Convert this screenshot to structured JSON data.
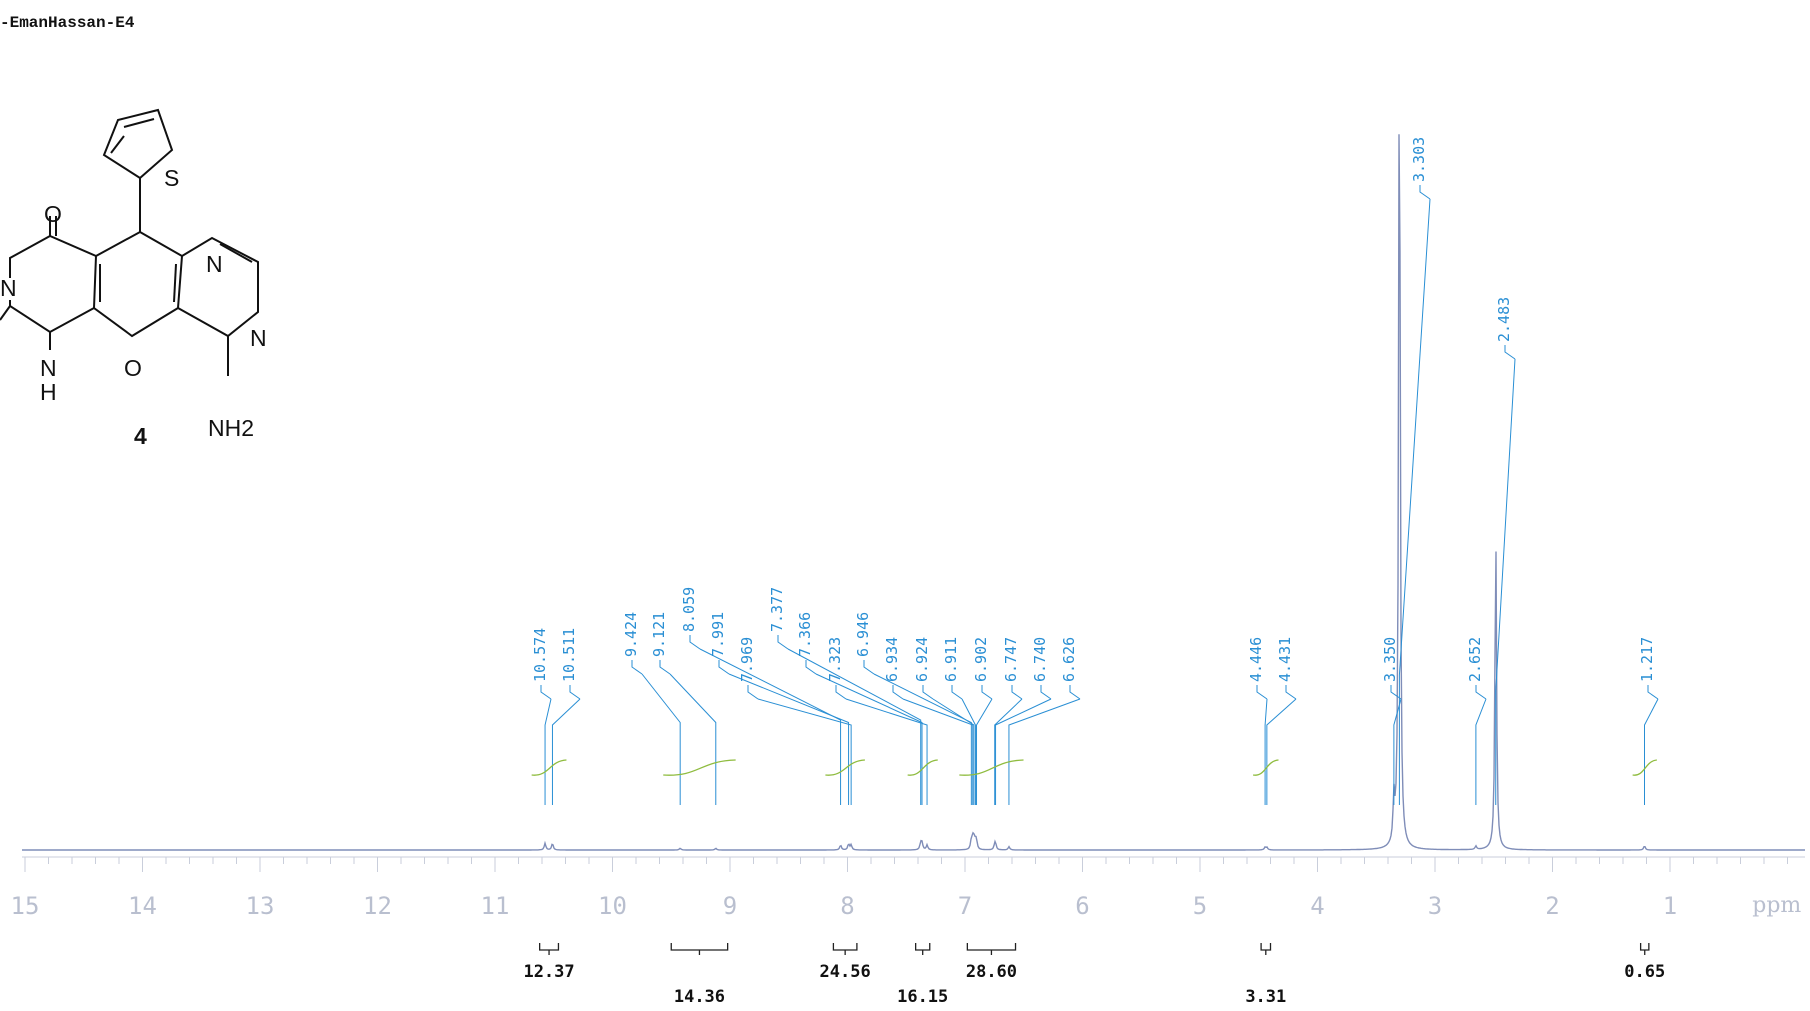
{
  "sample_label": "-EmanHassan-E4",
  "structure": {
    "compound_number": "4",
    "atoms": [
      "O",
      "N",
      "N",
      "N",
      "S",
      "O",
      "N",
      "H",
      "NH2"
    ]
  },
  "colors": {
    "axis_text": "#b9bfcf",
    "peak_label": "#2a8fd4",
    "spectrum": "#7f8db8",
    "integral_curve": "#8fbc3f",
    "integral_text": "#111111"
  },
  "chart_data": {
    "type": "line",
    "title": "",
    "xlabel": "ppm",
    "ylabel": "",
    "x_axis": "reversed",
    "xlim": [
      15.5,
      0.0
    ],
    "x_ticks": [
      15,
      14,
      13,
      12,
      11,
      10,
      9,
      8,
      7,
      6,
      5,
      4,
      3,
      2,
      1
    ],
    "x_unit_label": "ppm",
    "grid": false,
    "peaks": [
      {
        "label": "10.574",
        "ppm": 10.574,
        "height": 0.008
      },
      {
        "label": "10.511",
        "ppm": 10.511,
        "height": 0.008
      },
      {
        "label": "9.424",
        "ppm": 9.424,
        "height": 0.002
      },
      {
        "label": "9.121",
        "ppm": 9.121,
        "height": 0.002
      },
      {
        "label": "8.059",
        "ppm": 8.059,
        "height": 0.006
      },
      {
        "label": "7.991",
        "ppm": 7.991,
        "height": 0.007
      },
      {
        "label": "7.969",
        "ppm": 7.969,
        "height": 0.006
      },
      {
        "label": "7.377",
        "ppm": 7.377,
        "height": 0.008
      },
      {
        "label": "7.366",
        "ppm": 7.366,
        "height": 0.008
      },
      {
        "label": "7.323",
        "ppm": 7.323,
        "height": 0.006
      },
      {
        "label": "6.946",
        "ppm": 6.946,
        "height": 0.01
      },
      {
        "label": "6.934",
        "ppm": 6.934,
        "height": 0.012
      },
      {
        "label": "6.924",
        "ppm": 6.924,
        "height": 0.01
      },
      {
        "label": "6.911",
        "ppm": 6.911,
        "height": 0.009
      },
      {
        "label": "6.902",
        "ppm": 6.902,
        "height": 0.008
      },
      {
        "label": "6.747",
        "ppm": 6.747,
        "height": 0.006
      },
      {
        "label": "6.740",
        "ppm": 6.74,
        "height": 0.006
      },
      {
        "label": "6.626",
        "ppm": 6.626,
        "height": 0.004
      },
      {
        "label": "4.446",
        "ppm": 4.446,
        "height": 0.003
      },
      {
        "label": "4.431",
        "ppm": 4.431,
        "height": 0.003
      },
      {
        "label": "3.350",
        "ppm": 3.35,
        "height": 0.05
      },
      {
        "label": "3.303",
        "ppm": 3.303,
        "height": 1.0
      },
      {
        "label": "2.652",
        "ppm": 2.652,
        "height": 0.004
      },
      {
        "label": "2.483",
        "ppm": 2.483,
        "height": 0.38
      },
      {
        "label": "1.217",
        "ppm": 1.217,
        "height": 0.005
      }
    ],
    "integrals": [
      {
        "label": "12.37",
        "from": 10.62,
        "to": 10.46,
        "level": 0,
        "value": 12.37
      },
      {
        "label": "14.36",
        "from": 9.5,
        "to": 9.02,
        "level": 1,
        "value": 14.36
      },
      {
        "label": "24.56",
        "from": 8.12,
        "to": 7.92,
        "level": 0,
        "value": 24.56
      },
      {
        "label": "16.15",
        "from": 7.42,
        "to": 7.3,
        "level": 1,
        "value": 16.15
      },
      {
        "label": "28.60",
        "from": 6.98,
        "to": 6.57,
        "level": 0,
        "value": 28.6
      },
      {
        "label": "3.31",
        "from": 4.48,
        "to": 4.4,
        "level": 1,
        "value": 3.31
      },
      {
        "label": "0.65",
        "from": 1.25,
        "to": 1.18,
        "level": 0,
        "value": 0.65
      }
    ]
  }
}
